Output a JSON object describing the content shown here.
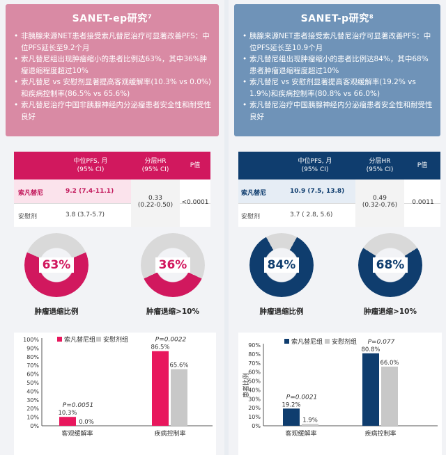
{
  "left": {
    "title": "SANET-ep研究⁷",
    "bullets": [
      "非胰腺来源NET患者接受索凡替尼治疗可显著改善PFS：中位PFS延长至9.2个月",
      "索凡替尼组出现肿瘤缩小的患者比例达63%，其中36%肿瘤退缩程度超过10%",
      "索凡替尼 vs 安慰剂显著提高客观缓解率(10.3% vs 0.0%)和疾病控制率(86.5% vs 65.6%)",
      "索凡替尼治疗中国非胰腺神经内分泌瘤患者安全性和耐受性良好"
    ],
    "table": {
      "head_pfs": "中位PFS, 月",
      "head_pfs_ci": "(95% CI)",
      "head_hr": "分层HR",
      "head_hr_ci": "(95% CI)",
      "head_p": "P值",
      "drug1": "索凡替尼",
      "drug1_pfs": "9.2 (7.4-11.1)",
      "drug2": "安慰剂",
      "drug2_pfs": "3.8 (3.7-5.7)",
      "hr": "0.33",
      "hr_ci": "(0.22-0.50)",
      "p": "<0.0001"
    },
    "donut1": {
      "pct_text": "63%",
      "value": 63,
      "label": "肿瘤退缩比例"
    },
    "donut2": {
      "pct_text": "36%",
      "value": 36,
      "label": "肿瘤退缩>10%"
    },
    "accent": "#d1185e"
  },
  "right": {
    "title": "SANET-p研究⁸",
    "bullets": [
      "胰腺来源NET患者接受索凡替尼治疗可显著改善PFS：中位PFS延长至10.9个月",
      "索凡替尼组出现肿瘤缩小的患者比例达84%，其中68%患者肿瘤退缩程度超过10%",
      "索凡替尼 vs 安慰剂显著提高客观缓解率(19.2% vs 1.9%)和疾病控制率(80.8% vs 66.0%)",
      "索凡替尼治疗中国胰腺神经内分泌瘤患者安全性和耐受性良好"
    ],
    "table": {
      "head_pfs": "中位PFS, 月",
      "head_pfs_ci": "(95% CI)",
      "head_hr": "分层HR",
      "head_hr_ci": "(95% CI)",
      "head_p": "P值",
      "drug1": "索凡替尼",
      "drug1_pfs": "10.9 (7.5, 13.8)",
      "drug2": "安慰剂",
      "drug2_pfs": "3.7 ( 2.8, 5.6)",
      "hr": "0.49",
      "hr_ci": "(0.32-0.76)",
      "p": "0.0011"
    },
    "donut1": {
      "pct_text": "84%",
      "value": 84,
      "label": "肿瘤退缩比例"
    },
    "donut2": {
      "pct_text": "68%",
      "value": 68,
      "label": "肿瘤退缩>10%"
    },
    "accent": "#0f3d6e"
  },
  "chart_data": [
    {
      "type": "bar",
      "categories": [
        "客观缓解率",
        "疾病控制率"
      ],
      "series": [
        {
          "name": "索凡替尼组",
          "values": [
            10.3,
            86.5
          ],
          "labels": [
            "10.3%",
            "86.5%"
          ],
          "color": "#e8175d"
        },
        {
          "name": "安慰剂组",
          "values": [
            0.0,
            65.6
          ],
          "labels": [
            "0.0%",
            "65.6%"
          ],
          "color": "#c8c8c8"
        }
      ],
      "p_values": [
        "P=0.0051",
        "P=0.0022"
      ],
      "ylim": [
        0,
        100
      ],
      "yticks": [
        "0%",
        "10%",
        "20%",
        "30%",
        "40%",
        "50%",
        "60%",
        "70%",
        "80%",
        "90%",
        "100%"
      ],
      "ylabel": "",
      "xlabel": ""
    },
    {
      "type": "bar",
      "categories": [
        "客观缓解率",
        "疾病控制率"
      ],
      "series": [
        {
          "name": "索凡替尼组",
          "values": [
            19.2,
            80.8
          ],
          "labels": [
            "19.2%",
            "80.8%"
          ],
          "color": "#0f3d6e"
        },
        {
          "name": "安慰剂组",
          "values": [
            1.9,
            66.0
          ],
          "labels": [
            "1.9%",
            "66.0%"
          ],
          "color": "#c8c8c8"
        }
      ],
      "p_values": [
        "P=0.0021",
        "P=0.077"
      ],
      "ylim": [
        0,
        90
      ],
      "yticks": [
        "0%",
        "10%",
        "20%",
        "30%",
        "40%",
        "50%",
        "60%",
        "70%",
        "80%",
        "90%"
      ],
      "ylabel": "患者比例",
      "xlabel": ""
    }
  ]
}
